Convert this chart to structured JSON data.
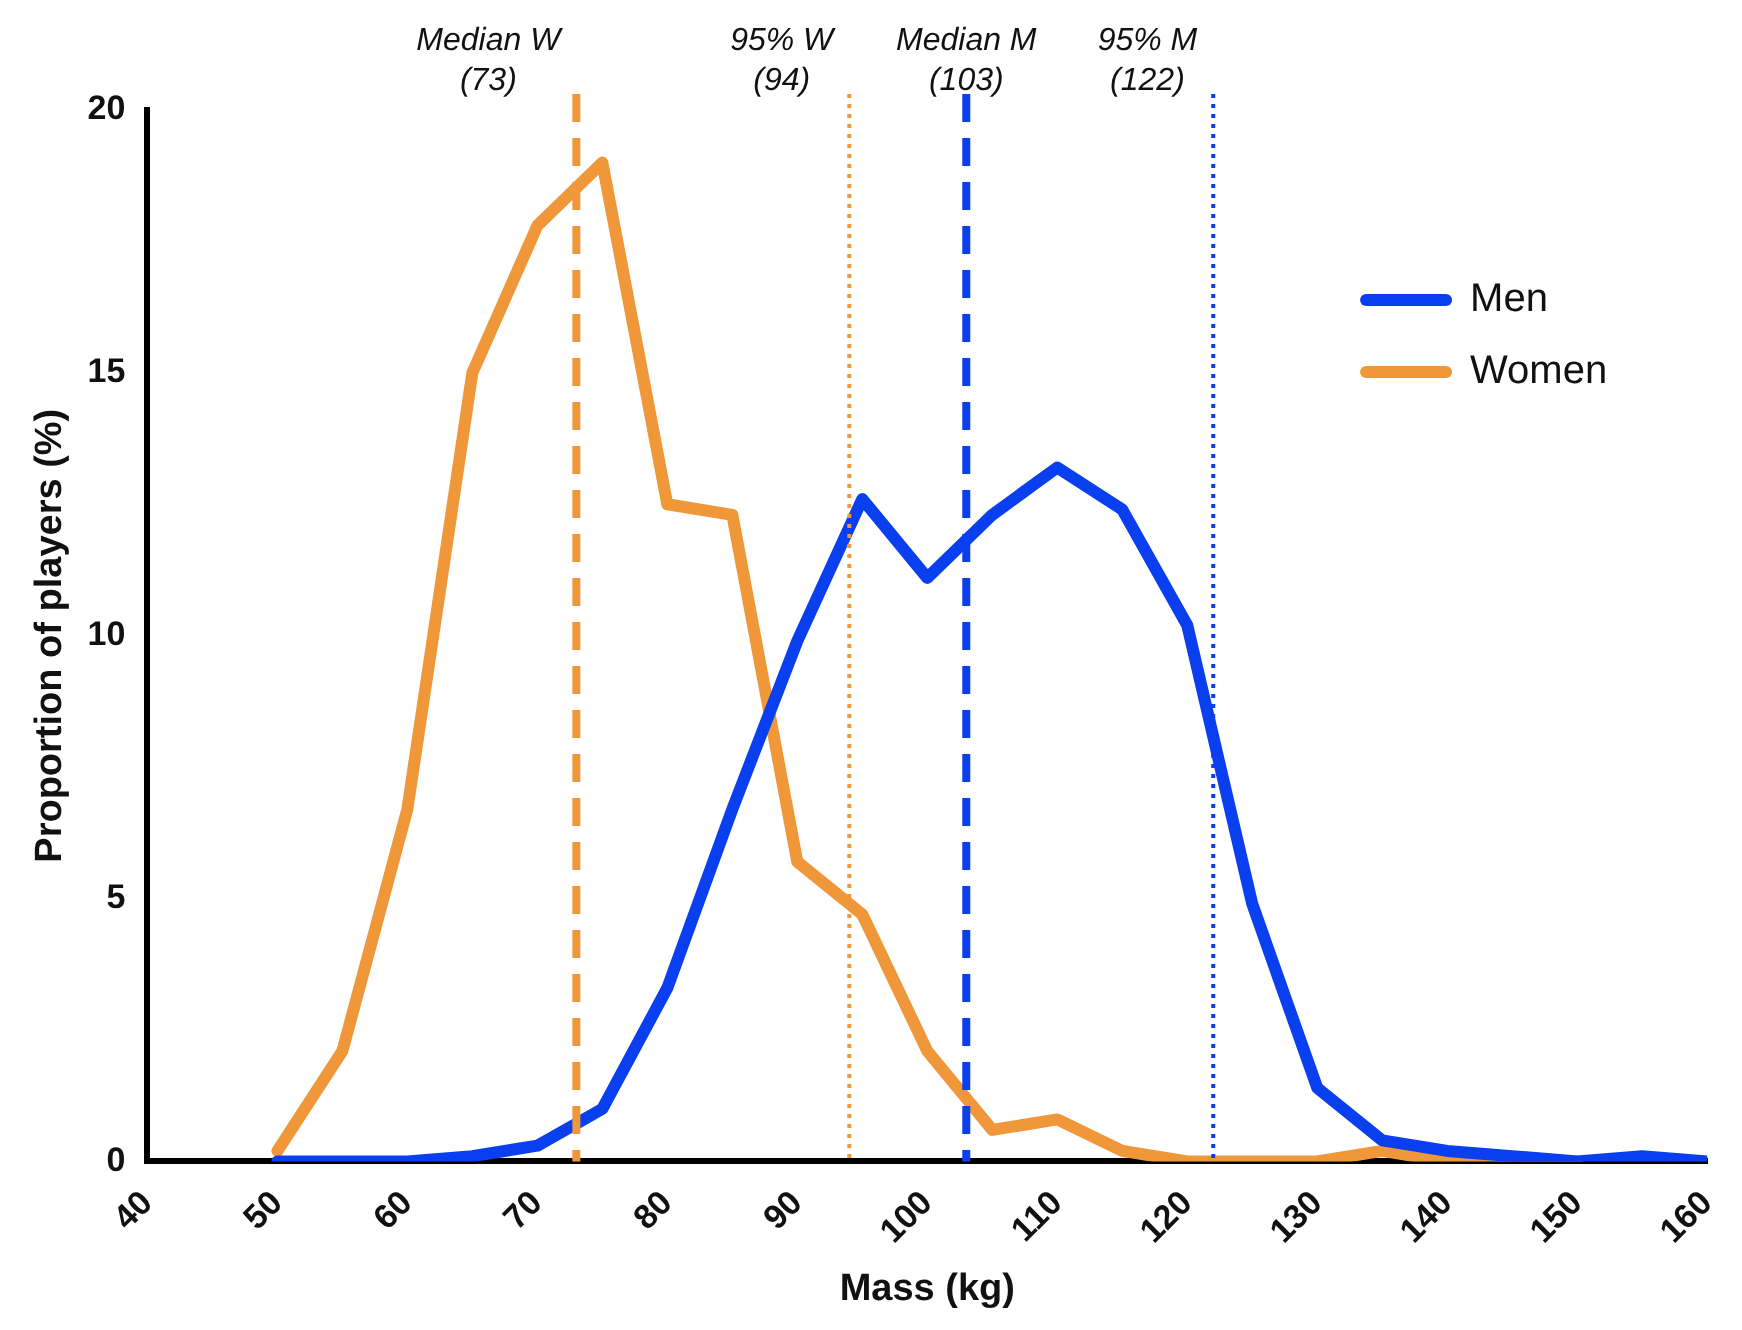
{
  "chart_data": {
    "type": "line",
    "xlabel": "Mass (kg)",
    "ylabel": "Proportion of players (%)",
    "x": [
      50,
      55,
      60,
      65,
      70,
      75,
      80,
      85,
      90,
      95,
      100,
      105,
      110,
      115,
      120,
      125,
      130,
      135,
      140,
      145,
      150,
      155,
      160
    ],
    "series": [
      {
        "name": "Men",
        "color": "#0a3ff0",
        "values": [
          0,
          0,
          0,
          0.1,
          0.3,
          1.0,
          3.3,
          6.7,
          9.9,
          12.6,
          11.1,
          12.3,
          13.2,
          12.4,
          10.2,
          4.9,
          1.4,
          0.4,
          0.2,
          0.1,
          0,
          0.1,
          0
        ]
      },
      {
        "name": "Women",
        "color": "#f0973a",
        "values": [
          0.2,
          2.1,
          6.7,
          15.0,
          17.8,
          19.0,
          12.5,
          12.3,
          5.7,
          4.7,
          2.1,
          0.6,
          0.8,
          0.2,
          0,
          0,
          0,
          0.2,
          0,
          0,
          0,
          null,
          null
        ]
      }
    ],
    "xlim": [
      40,
      160
    ],
    "xticks": [
      40,
      50,
      60,
      70,
      80,
      90,
      100,
      110,
      120,
      130,
      140,
      150,
      160
    ],
    "ylim": [
      0,
      20
    ],
    "yticks": [
      0,
      5,
      10,
      15,
      20
    ],
    "ref_lines": [
      {
        "axis": "x",
        "value": 73,
        "label": "Median W\n(73)",
        "color": "#f0973a",
        "line_style": "dashed"
      },
      {
        "axis": "x",
        "value": 94,
        "label": "95% W\n(94)",
        "color": "#f0973a",
        "line_style": "dotted"
      },
      {
        "axis": "x",
        "value": 103,
        "label": "Median M\n(103)",
        "color": "#0a3ff0",
        "line_style": "dashed"
      },
      {
        "axis": "x",
        "value": 122,
        "label": "95% M\n(122)",
        "color": "#0a3ff0",
        "line_style": "dotted"
      }
    ],
    "grid": false,
    "legend": "top right",
    "marker": "none",
    "line_style": "solid"
  }
}
